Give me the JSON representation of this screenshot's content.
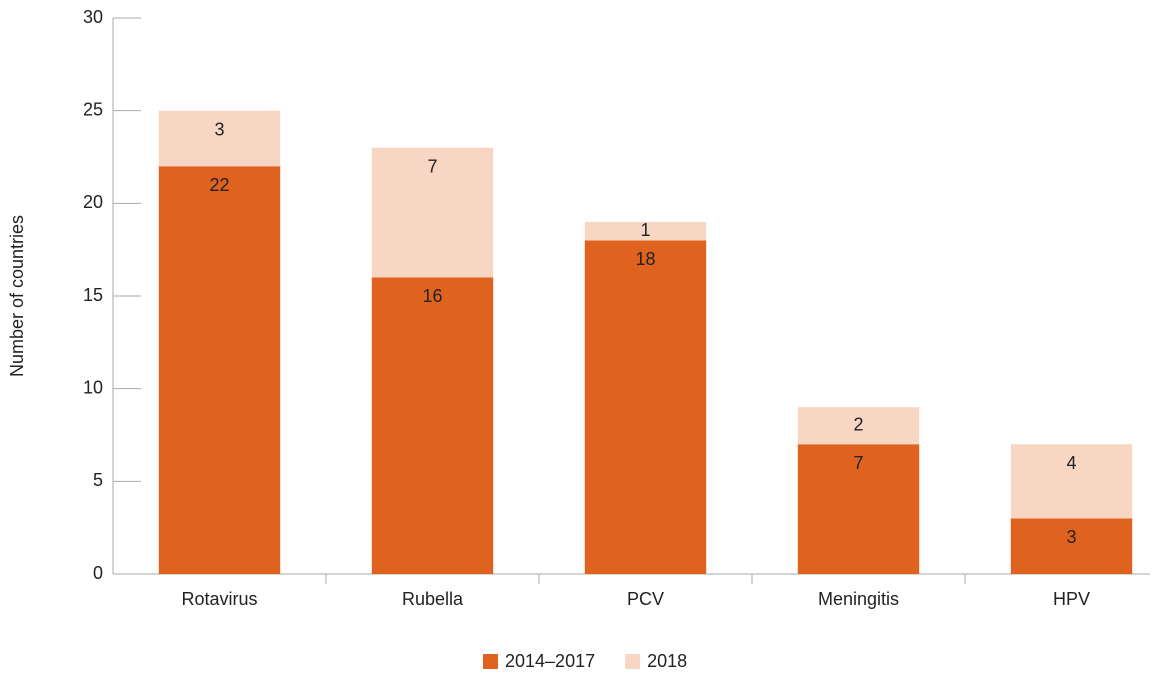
{
  "chart_data": {
    "type": "stacked_bar",
    "ylabel": "Number of countries",
    "categories": [
      "Rotavirus",
      "Rubella",
      "PCV",
      "Meningitis",
      "HPV"
    ],
    "series": [
      {
        "name": "2014–2017",
        "color": "#e0621f",
        "values": [
          22,
          16,
          18,
          7,
          3
        ]
      },
      {
        "name": "2018",
        "color": "#f7d7c3",
        "values": [
          3,
          7,
          1,
          2,
          4
        ]
      }
    ],
    "ylim": [
      0,
      30
    ],
    "yticks": [
      0,
      5,
      10,
      15,
      20,
      25,
      30
    ],
    "legend": "bottom"
  }
}
